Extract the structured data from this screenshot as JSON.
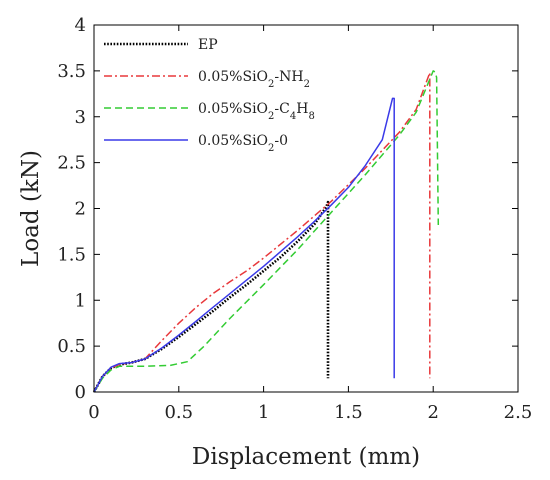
{
  "chart_data": {
    "type": "line",
    "xlabel": "Displacement (mm)",
    "ylabel": "Load (kN)",
    "xlim": [
      0,
      2.5
    ],
    "ylim": [
      0,
      4
    ],
    "x_ticks": [
      "0",
      "0.5",
      "1",
      "1.5",
      "2",
      "2.5"
    ],
    "y_ticks": [
      "0",
      "0.5",
      "1",
      "1.5",
      "2",
      "2.5",
      "3",
      "3.5",
      "4"
    ],
    "grid": false,
    "legend_position": "top-left",
    "series": [
      {
        "name": "EP",
        "legend": {
          "base": "EP",
          "parts": []
        },
        "color": "#000000",
        "style": "dotted",
        "points": [
          [
            0,
            0
          ],
          [
            0.05,
            0.17
          ],
          [
            0.1,
            0.26
          ],
          [
            0.15,
            0.3
          ],
          [
            0.22,
            0.32
          ],
          [
            0.3,
            0.36
          ],
          [
            0.4,
            0.47
          ],
          [
            0.5,
            0.6
          ],
          [
            0.6,
            0.74
          ],
          [
            0.7,
            0.88
          ],
          [
            0.8,
            1.03
          ],
          [
            0.9,
            1.17
          ],
          [
            1.0,
            1.32
          ],
          [
            1.1,
            1.47
          ],
          [
            1.2,
            1.64
          ],
          [
            1.3,
            1.83
          ],
          [
            1.37,
            2.02
          ],
          [
            1.38,
            2.07
          ],
          [
            1.38,
            0.15
          ]
        ]
      },
      {
        "name": "0.05%SiO2-NH2",
        "legend": {
          "base": "0.05%SiO",
          "parts": [
            {
              "t": "2",
              "sub": true
            },
            {
              "t": "-NH",
              "sub": false
            },
            {
              "t": "2",
              "sub": true
            }
          ]
        },
        "color": "#e8383b",
        "style": "dashdot",
        "points": [
          [
            0,
            0
          ],
          [
            0.05,
            0.17
          ],
          [
            0.1,
            0.26
          ],
          [
            0.15,
            0.3
          ],
          [
            0.22,
            0.32
          ],
          [
            0.3,
            0.36
          ],
          [
            0.4,
            0.56
          ],
          [
            0.5,
            0.75
          ],
          [
            0.6,
            0.92
          ],
          [
            0.7,
            1.07
          ],
          [
            0.8,
            1.2
          ],
          [
            0.9,
            1.32
          ],
          [
            1.0,
            1.46
          ],
          [
            1.2,
            1.76
          ],
          [
            1.4,
            2.08
          ],
          [
            1.6,
            2.44
          ],
          [
            1.8,
            2.83
          ],
          [
            1.9,
            3.08
          ],
          [
            1.98,
            3.48
          ],
          [
            1.98,
            0.15
          ]
        ]
      },
      {
        "name": "0.05%SiO2-C4H8",
        "legend": {
          "base": "0.05%SiO",
          "parts": [
            {
              "t": "2",
              "sub": true
            },
            {
              "t": "-C",
              "sub": false
            },
            {
              "t": "4",
              "sub": true
            },
            {
              "t": "H",
              "sub": false
            },
            {
              "t": "8",
              "sub": true
            }
          ]
        },
        "color": "#33cc33",
        "style": "dashed",
        "points": [
          [
            0,
            0
          ],
          [
            0.05,
            0.15
          ],
          [
            0.1,
            0.24
          ],
          [
            0.15,
            0.28
          ],
          [
            0.3,
            0.28
          ],
          [
            0.45,
            0.29
          ],
          [
            0.55,
            0.33
          ],
          [
            0.65,
            0.5
          ],
          [
            0.8,
            0.8
          ],
          [
            1.0,
            1.17
          ],
          [
            1.2,
            1.55
          ],
          [
            1.4,
            1.96
          ],
          [
            1.6,
            2.37
          ],
          [
            1.8,
            2.8
          ],
          [
            1.9,
            3.05
          ],
          [
            2.0,
            3.5
          ],
          [
            2.01,
            3.49
          ],
          [
            2.02,
            3.43
          ],
          [
            2.03,
            1.82
          ]
        ]
      },
      {
        "name": "0.05%SiO2-0",
        "legend": {
          "base": "0.05%SiO",
          "parts": [
            {
              "t": "2",
              "sub": true
            },
            {
              "t": "-0",
              "sub": false
            }
          ]
        },
        "color": "#3a3ae8",
        "style": "solid",
        "points": [
          [
            0,
            0
          ],
          [
            0.05,
            0.17
          ],
          [
            0.1,
            0.27
          ],
          [
            0.15,
            0.31
          ],
          [
            0.22,
            0.32
          ],
          [
            0.3,
            0.36
          ],
          [
            0.4,
            0.48
          ],
          [
            0.5,
            0.62
          ],
          [
            0.6,
            0.77
          ],
          [
            0.7,
            0.92
          ],
          [
            0.8,
            1.07
          ],
          [
            0.9,
            1.22
          ],
          [
            1.0,
            1.37
          ],
          [
            1.1,
            1.53
          ],
          [
            1.2,
            1.69
          ],
          [
            1.3,
            1.86
          ],
          [
            1.4,
            2.04
          ],
          [
            1.5,
            2.23
          ],
          [
            1.6,
            2.47
          ],
          [
            1.7,
            2.75
          ],
          [
            1.76,
            3.2
          ],
          [
            1.77,
            3.2
          ],
          [
            1.77,
            0.15
          ]
        ]
      }
    ]
  }
}
